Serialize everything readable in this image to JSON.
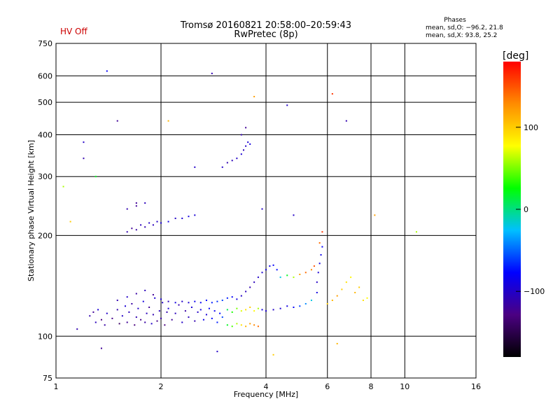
{
  "status": {
    "hv": "HV Off",
    "hv_color": "#cc0000"
  },
  "header": {
    "title": "Tromsø 20160821 20:58:00–20:59:43",
    "subtitle": "RwPretec (8p)"
  },
  "stats": {
    "heading": "Phases",
    "line_o": "mean, sd,O: −96.2, 21.8",
    "line_x": "mean, sd,X:  93.8, 25.2"
  },
  "chart_data": {
    "type": "scatter",
    "xlabel": "Frequency [MHz]",
    "ylabel": "Stationary phase Virtual Height [km]",
    "x_scale": "log",
    "y_scale": "log",
    "xlim": [
      1,
      16
    ],
    "ylim": [
      75,
      750
    ],
    "x_ticks": [
      {
        "v": 1,
        "label": "1"
      },
      {
        "v": 2,
        "label": "2"
      },
      {
        "v": 4,
        "label": "4"
      },
      {
        "v": 6,
        "label": "6"
      },
      {
        "v": 8,
        "label": "8"
      },
      {
        "v": 10,
        "label": "10"
      },
      {
        "v": 16,
        "label": "16"
      }
    ],
    "y_ticks": [
      {
        "v": 75,
        "label": "75"
      },
      {
        "v": 100,
        "label": "100"
      },
      {
        "v": 200,
        "label": "200"
      },
      {
        "v": 300,
        "label": "300"
      },
      {
        "v": 400,
        "label": "400"
      },
      {
        "v": 500,
        "label": "500"
      },
      {
        "v": 600,
        "label": "600"
      },
      {
        "v": 750,
        "label": "750"
      }
    ],
    "grid": true,
    "colorbar": {
      "title": "[deg]",
      "range": [
        -180,
        180
      ],
      "ticks": [
        {
          "v": 100,
          "label": "100"
        },
        {
          "v": 0,
          "label": "0"
        },
        {
          "v": -100,
          "label": "−100"
        }
      ],
      "colors": [
        "#000000",
        "#4b0082",
        "#0000ff",
        "#00bfff",
        "#00ff00",
        "#ffff00",
        "#ff8c00",
        "#ff0000"
      ]
    },
    "points": [
      [
        1.25,
        115,
        -110
      ],
      [
        1.28,
        118,
        -120
      ],
      [
        1.3,
        110,
        -105
      ],
      [
        1.32,
        120,
        -95
      ],
      [
        1.35,
        112,
        -130
      ],
      [
        1.38,
        108,
        -115
      ],
      [
        1.4,
        117,
        -100
      ],
      [
        1.45,
        113,
        -125
      ],
      [
        1.5,
        120,
        -110
      ],
      [
        1.52,
        109,
        -140
      ],
      [
        1.55,
        115,
        -100
      ],
      [
        1.58,
        123,
        -95
      ],
      [
        1.6,
        110,
        -120
      ],
      [
        1.62,
        118,
        -105
      ],
      [
        1.65,
        125,
        -115
      ],
      [
        1.68,
        108,
        -130
      ],
      [
        1.7,
        114,
        -110
      ],
      [
        1.72,
        121,
        -100
      ],
      [
        1.75,
        112,
        -125
      ],
      [
        1.78,
        127,
        -90
      ],
      [
        1.8,
        110,
        -115
      ],
      [
        1.82,
        117,
        -105
      ],
      [
        1.85,
        122,
        -120
      ],
      [
        1.88,
        109,
        -100
      ],
      [
        1.9,
        116,
        -110
      ],
      [
        1.92,
        130,
        -95
      ],
      [
        1.95,
        111,
        -125
      ],
      [
        1.98,
        119,
        -105
      ],
      [
        2.0,
        113,
        -115
      ],
      [
        2.02,
        126,
        -100
      ],
      [
        2.05,
        108,
        -130
      ],
      [
        2.08,
        118,
        -110
      ],
      [
        2.1,
        121,
        -95
      ],
      [
        2.15,
        112,
        -120
      ],
      [
        2.2,
        117,
        -105
      ],
      [
        2.25,
        124,
        -110
      ],
      [
        2.3,
        110,
        -100
      ],
      [
        2.35,
        119,
        -115
      ],
      [
        2.4,
        114,
        -105
      ],
      [
        2.45,
        122,
        -95
      ],
      [
        2.5,
        111,
        -110
      ],
      [
        2.55,
        118,
        -100
      ],
      [
        2.6,
        120,
        -90
      ],
      [
        2.65,
        112,
        -85
      ],
      [
        2.7,
        116,
        -95
      ],
      [
        2.75,
        121,
        -80
      ],
      [
        2.8,
        113,
        -75
      ],
      [
        2.85,
        119,
        -85
      ],
      [
        2.9,
        110,
        -70
      ],
      [
        2.95,
        117,
        -75
      ],
      [
        3.0,
        114,
        -60
      ],
      [
        1.5,
        128,
        -110
      ],
      [
        1.6,
        131,
        -100
      ],
      [
        1.7,
        134,
        -115
      ],
      [
        1.8,
        137,
        -105
      ],
      [
        1.9,
        133,
        -120
      ],
      [
        2.0,
        129,
        -95
      ],
      [
        2.1,
        127,
        -105
      ],
      [
        2.2,
        126,
        -90
      ],
      [
        2.3,
        127,
        -100
      ],
      [
        2.4,
        126,
        -95
      ],
      [
        2.5,
        127,
        -85
      ],
      [
        2.6,
        126,
        -80
      ],
      [
        2.7,
        128,
        -75
      ],
      [
        2.8,
        126,
        -70
      ],
      [
        2.9,
        127,
        -65
      ],
      [
        3.0,
        128,
        -60
      ],
      [
        3.1,
        130,
        -70
      ],
      [
        3.2,
        131,
        -80
      ],
      [
        3.3,
        129,
        -90
      ],
      [
        3.4,
        132,
        -100
      ],
      [
        3.5,
        136,
        -105
      ],
      [
        3.6,
        140,
        -110
      ],
      [
        3.7,
        145,
        -105
      ],
      [
        3.8,
        150,
        -100
      ],
      [
        3.9,
        155,
        -95
      ],
      [
        4.0,
        158,
        -90
      ],
      [
        4.1,
        162,
        -85
      ],
      [
        4.2,
        163,
        -80
      ],
      [
        4.3,
        158,
        -75
      ],
      [
        3.1,
        120,
        10
      ],
      [
        3.2,
        118,
        30
      ],
      [
        3.3,
        121,
        50
      ],
      [
        3.4,
        119,
        70
      ],
      [
        3.5,
        120,
        90
      ],
      [
        3.6,
        122,
        100
      ],
      [
        3.7,
        119,
        80
      ],
      [
        3.8,
        121,
        60
      ],
      [
        3.1,
        108,
        20
      ],
      [
        3.2,
        107,
        40
      ],
      [
        3.3,
        109,
        60
      ],
      [
        3.4,
        108,
        90
      ],
      [
        3.5,
        107,
        110
      ],
      [
        3.6,
        109,
        120
      ],
      [
        3.7,
        108,
        130
      ],
      [
        3.8,
        107,
        140
      ],
      [
        3.9,
        120,
        -90
      ],
      [
        4.0,
        119,
        -95
      ],
      [
        4.2,
        120,
        -100
      ],
      [
        4.4,
        121,
        -95
      ],
      [
        4.6,
        123,
        -90
      ],
      [
        4.8,
        122,
        -80
      ],
      [
        5.0,
        123,
        -60
      ],
      [
        5.2,
        125,
        -40
      ],
      [
        5.4,
        128,
        -20
      ],
      [
        5.6,
        135,
        -90
      ],
      [
        5.6,
        145,
        -100
      ],
      [
        5.65,
        155,
        -95
      ],
      [
        5.7,
        165,
        -90
      ],
      [
        5.75,
        175,
        -85
      ],
      [
        5.8,
        185,
        -80
      ],
      [
        4.4,
        150,
        -20
      ],
      [
        4.6,
        152,
        20
      ],
      [
        4.8,
        150,
        60
      ],
      [
        5.0,
        153,
        120
      ],
      [
        5.2,
        155,
        140
      ],
      [
        5.4,
        158,
        130
      ],
      [
        5.5,
        162,
        150
      ],
      [
        5.7,
        190,
        140
      ],
      [
        5.8,
        205,
        160
      ],
      [
        6.0,
        125,
        100
      ],
      [
        6.2,
        128,
        110
      ],
      [
        6.4,
        132,
        120
      ],
      [
        6.6,
        138,
        100
      ],
      [
        6.8,
        145,
        90
      ],
      [
        7.0,
        150,
        80
      ],
      [
        7.2,
        135,
        110
      ],
      [
        7.4,
        140,
        100
      ],
      [
        7.6,
        128,
        90
      ],
      [
        7.8,
        130,
        80
      ],
      [
        1.6,
        205,
        -110
      ],
      [
        1.65,
        210,
        -120
      ],
      [
        1.7,
        208,
        -115
      ],
      [
        1.75,
        215,
        -105
      ],
      [
        1.8,
        212,
        -110
      ],
      [
        1.85,
        218,
        -100
      ],
      [
        1.9,
        215,
        -105
      ],
      [
        1.95,
        220,
        -100
      ],
      [
        2.0,
        218,
        -95
      ],
      [
        2.1,
        220,
        -90
      ],
      [
        2.2,
        225,
        -100
      ],
      [
        2.3,
        225,
        -95
      ],
      [
        2.4,
        228,
        -90
      ],
      [
        2.5,
        230,
        -95
      ],
      [
        1.6,
        240,
        -110
      ],
      [
        1.7,
        245,
        -120
      ],
      [
        1.8,
        250,
        -105
      ],
      [
        3.0,
        320,
        -100
      ],
      [
        3.1,
        330,
        -110
      ],
      [
        3.2,
        335,
        -105
      ],
      [
        3.3,
        340,
        -100
      ],
      [
        3.4,
        350,
        -95
      ],
      [
        3.45,
        360,
        -105
      ],
      [
        3.5,
        370,
        -100
      ],
      [
        3.55,
        380,
        -95
      ],
      [
        3.6,
        375,
        -90
      ],
      [
        3.4,
        400,
        -110
      ],
      [
        3.5,
        420,
        -120
      ],
      [
        1.2,
        380,
        -100
      ],
      [
        1.2,
        340,
        -110
      ],
      [
        1.5,
        440,
        -120
      ],
      [
        1.4,
        620,
        -80
      ],
      [
        2.8,
        610,
        -110
      ],
      [
        4.6,
        490,
        -100
      ],
      [
        6.8,
        440,
        -110
      ],
      [
        6.2,
        530,
        160
      ],
      [
        3.7,
        520,
        120
      ],
      [
        2.1,
        440,
        110
      ],
      [
        1.05,
        280,
        60
      ],
      [
        1.3,
        300,
        20
      ],
      [
        1.1,
        220,
        100
      ],
      [
        8.2,
        230,
        120
      ],
      [
        10.8,
        205,
        60
      ],
      [
        2.9,
        90,
        -100
      ],
      [
        4.2,
        88,
        100
      ],
      [
        6.4,
        95,
        110
      ],
      [
        1.15,
        105,
        -110
      ],
      [
        1.35,
        92,
        -120
      ],
      [
        4.8,
        230,
        -100
      ],
      [
        1.7,
        250,
        -120
      ],
      [
        2.5,
        320,
        -100
      ],
      [
        3.9,
        240,
        -100
      ]
    ]
  }
}
